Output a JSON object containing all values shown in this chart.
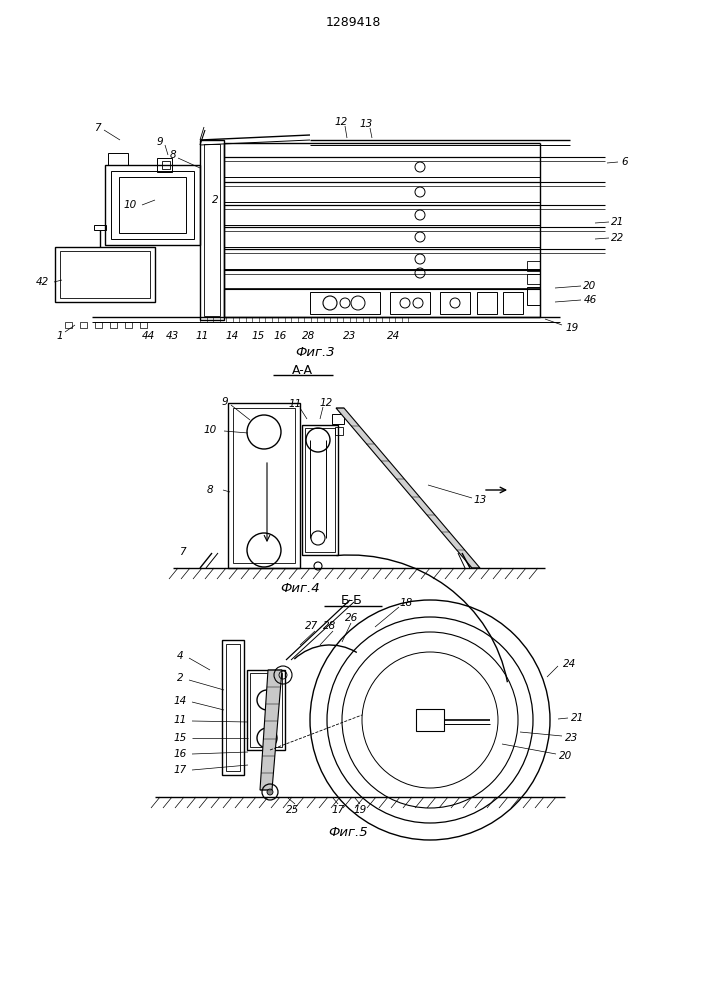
{
  "patent_number": "1289418",
  "bg_color": "#ffffff",
  "fig3_caption": "Фиг.3",
  "fig4_caption": "Фиг.4",
  "fig5_caption": "Фиг.5",
  "section_aa": "A-A",
  "section_bb": "Б-Б"
}
